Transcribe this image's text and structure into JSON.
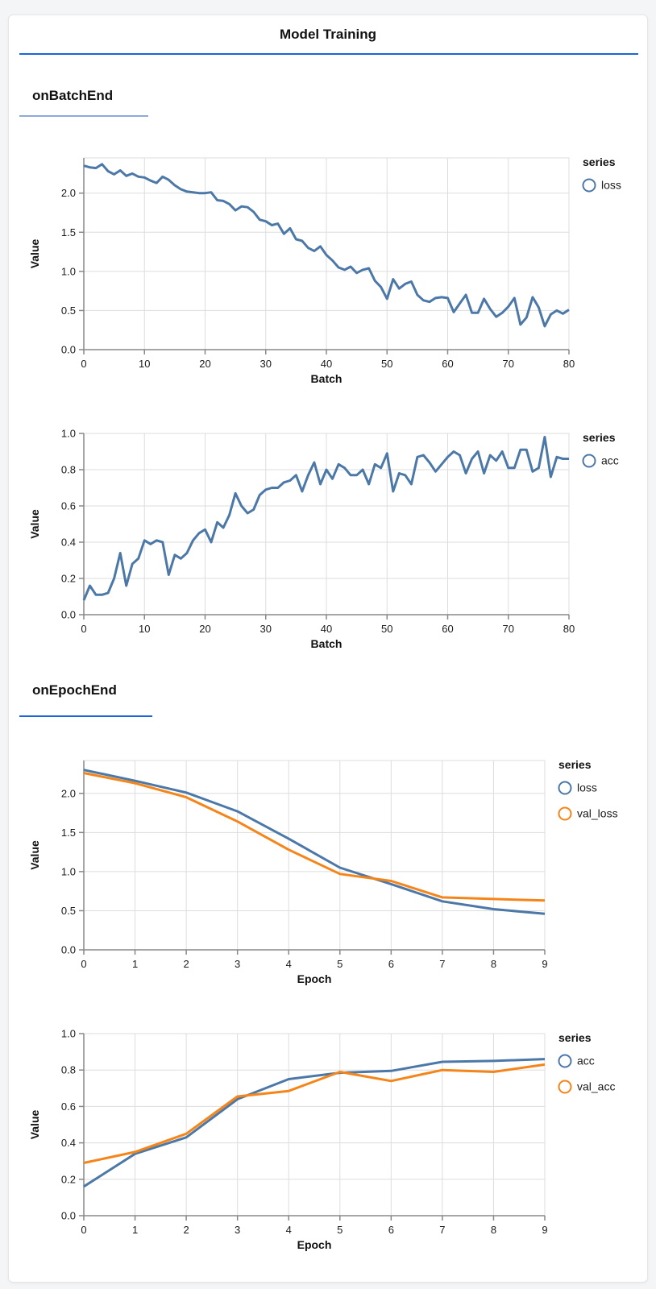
{
  "window": {
    "title": "Model Training"
  },
  "sections": [
    {
      "label": "onBatchEnd"
    },
    {
      "label": "onEpochEnd"
    }
  ],
  "theme": {
    "page_bg": "#f4f5f6",
    "card_bg": "#ffffff",
    "title_rule_color": "#1a66d9",
    "batch_section_rule_color": "#8fa9d9",
    "epoch_section_rule_color": "#1a66d9",
    "grid_color": "#dddddd",
    "axis_color": "#888888",
    "tick_text_color": "#1b1b1b",
    "series_blue": "#4c78a8",
    "series_orange": "#f58518"
  },
  "chart_data": [
    {
      "type": "line",
      "section": "onBatchEnd",
      "xlabel": "Batch",
      "ylabel": "Value",
      "legend_title": "series",
      "legend_position": "right",
      "grid": true,
      "xlim": [
        0,
        80
      ],
      "ylim": [
        0,
        2.45
      ],
      "x_ticks": [
        0,
        10,
        20,
        30,
        40,
        50,
        60,
        70,
        80
      ],
      "x_tick_labels": [
        "0",
        "10",
        "20",
        "30",
        "40",
        "50",
        "60",
        "70",
        "80"
      ],
      "y_ticks": [
        0,
        0.5,
        1.0,
        1.5,
        2.0
      ],
      "y_tick_labels": [
        "0.0",
        "0.5",
        "1.0",
        "1.5",
        "2.0"
      ],
      "series": [
        {
          "name": "loss",
          "color": "#4c78a8",
          "values": [
            2.35,
            2.33,
            2.32,
            2.37,
            2.28,
            2.24,
            2.29,
            2.22,
            2.25,
            2.21,
            2.2,
            2.16,
            2.13,
            2.21,
            2.17,
            2.1,
            2.05,
            2.02,
            2.01,
            2.0,
            2.0,
            2.01,
            1.91,
            1.9,
            1.86,
            1.78,
            1.83,
            1.82,
            1.76,
            1.66,
            1.64,
            1.59,
            1.61,
            1.48,
            1.55,
            1.41,
            1.39,
            1.3,
            1.26,
            1.32,
            1.21,
            1.14,
            1.05,
            1.02,
            1.06,
            0.98,
            1.02,
            1.04,
            0.88,
            0.8,
            0.65,
            0.9,
            0.78,
            0.84,
            0.87,
            0.7,
            0.63,
            0.61,
            0.66,
            0.67,
            0.66,
            0.48,
            0.59,
            0.7,
            0.47,
            0.47,
            0.65,
            0.52,
            0.42,
            0.47,
            0.55,
            0.66,
            0.32,
            0.41,
            0.67,
            0.54,
            0.3,
            0.45,
            0.5,
            0.46,
            0.51
          ]
        }
      ]
    },
    {
      "type": "line",
      "section": "onBatchEnd",
      "xlabel": "Batch",
      "ylabel": "Value",
      "legend_title": "series",
      "legend_position": "right",
      "grid": true,
      "xlim": [
        0,
        80
      ],
      "ylim": [
        0,
        1.0
      ],
      "x_ticks": [
        0,
        10,
        20,
        30,
        40,
        50,
        60,
        70,
        80
      ],
      "x_tick_labels": [
        "0",
        "10",
        "20",
        "30",
        "40",
        "50",
        "60",
        "70",
        "80"
      ],
      "y_ticks": [
        0,
        0.2,
        0.4,
        0.6,
        0.8,
        1.0
      ],
      "y_tick_labels": [
        "0.0",
        "0.2",
        "0.4",
        "0.6",
        "0.8",
        "1.0"
      ],
      "series": [
        {
          "name": "acc",
          "color": "#4c78a8",
          "values": [
            0.08,
            0.16,
            0.11,
            0.11,
            0.12,
            0.2,
            0.34,
            0.16,
            0.28,
            0.31,
            0.41,
            0.39,
            0.41,
            0.4,
            0.22,
            0.33,
            0.31,
            0.34,
            0.41,
            0.45,
            0.47,
            0.4,
            0.51,
            0.48,
            0.55,
            0.67,
            0.6,
            0.56,
            0.58,
            0.66,
            0.69,
            0.7,
            0.7,
            0.73,
            0.74,
            0.77,
            0.68,
            0.77,
            0.84,
            0.72,
            0.8,
            0.75,
            0.83,
            0.81,
            0.77,
            0.77,
            0.8,
            0.72,
            0.83,
            0.81,
            0.89,
            0.68,
            0.78,
            0.77,
            0.72,
            0.87,
            0.88,
            0.84,
            0.79,
            0.83,
            0.87,
            0.9,
            0.88,
            0.78,
            0.86,
            0.9,
            0.78,
            0.88,
            0.85,
            0.9,
            0.81,
            0.81,
            0.91,
            0.91,
            0.79,
            0.81,
            0.98,
            0.76,
            0.87,
            0.86,
            0.86
          ]
        }
      ]
    },
    {
      "type": "line",
      "section": "onEpochEnd",
      "xlabel": "Epoch",
      "ylabel": "Value",
      "legend_title": "series",
      "legend_position": "right",
      "grid": true,
      "xlim": [
        0,
        9
      ],
      "ylim": [
        0,
        2.42
      ],
      "x_ticks": [
        0,
        1,
        2,
        3,
        4,
        5,
        6,
        7,
        8,
        9
      ],
      "x_tick_labels": [
        "0",
        "1",
        "2",
        "3",
        "4",
        "5",
        "6",
        "7",
        "8",
        "9"
      ],
      "y_ticks": [
        0,
        0.5,
        1.0,
        1.5,
        2.0
      ],
      "y_tick_labels": [
        "0.0",
        "0.5",
        "1.0",
        "1.5",
        "2.0"
      ],
      "series": [
        {
          "name": "loss",
          "color": "#4c78a8",
          "values": [
            2.3,
            2.16,
            2.01,
            1.77,
            1.42,
            1.05,
            0.84,
            0.62,
            0.52,
            0.46
          ]
        },
        {
          "name": "val_loss",
          "color": "#f58518",
          "values": [
            2.26,
            2.13,
            1.95,
            1.64,
            1.28,
            0.97,
            0.88,
            0.67,
            0.65,
            0.63
          ]
        }
      ]
    },
    {
      "type": "line",
      "section": "onEpochEnd",
      "xlabel": "Epoch",
      "ylabel": "Value",
      "legend_title": "series",
      "legend_position": "right",
      "grid": true,
      "xlim": [
        0,
        9
      ],
      "ylim": [
        0,
        1.0
      ],
      "x_ticks": [
        0,
        1,
        2,
        3,
        4,
        5,
        6,
        7,
        8,
        9
      ],
      "x_tick_labels": [
        "0",
        "1",
        "2",
        "3",
        "4",
        "5",
        "6",
        "7",
        "8",
        "9"
      ],
      "y_ticks": [
        0,
        0.2,
        0.4,
        0.6,
        0.8,
        1.0
      ],
      "y_tick_labels": [
        "0.0",
        "0.2",
        "0.4",
        "0.6",
        "0.8",
        "1.0"
      ],
      "series": [
        {
          "name": "acc",
          "color": "#4c78a8",
          "values": [
            0.16,
            0.34,
            0.43,
            0.64,
            0.75,
            0.785,
            0.795,
            0.845,
            0.85,
            0.86
          ]
        },
        {
          "name": "val_acc",
          "color": "#f58518",
          "values": [
            0.29,
            0.35,
            0.45,
            0.655,
            0.685,
            0.79,
            0.74,
            0.8,
            0.79,
            0.83
          ]
        }
      ]
    }
  ]
}
